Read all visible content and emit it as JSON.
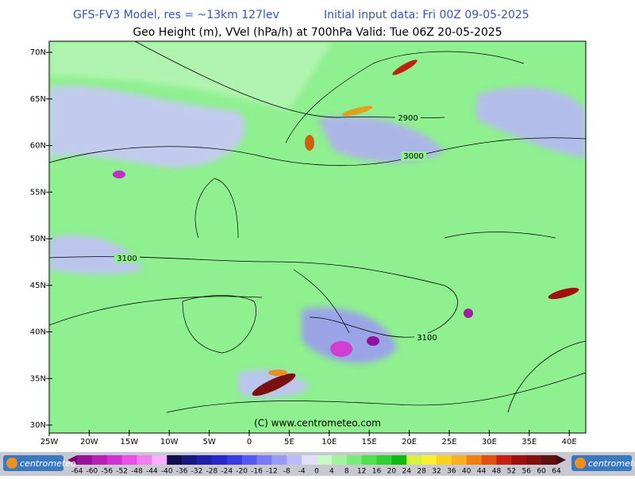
{
  "header": {
    "line1_left": "GFS-FV3 Model, res = ~13km 127lev",
    "line1_right": "Initial input data: Fri 00Z 09-05-2025",
    "line2": "Geo Height (m), VVel (hPa/h) at 700hPa  Valid: Tue 06Z 20-05-2025"
  },
  "map": {
    "lat_labels": [
      "70N",
      "65N",
      "60N",
      "55N",
      "50N",
      "45N",
      "40N",
      "35N",
      "30N"
    ],
    "lon_labels": [
      "25W",
      "20W",
      "15W",
      "10W",
      "5W",
      "0",
      "5E",
      "10E",
      "15E",
      "20E",
      "25E",
      "30E",
      "35E",
      "40E"
    ],
    "contour_labels": [
      "2900",
      "3000",
      "3100",
      "3100"
    ],
    "copyright": "(C) www.centrometeo.com"
  },
  "colorbar": {
    "labels": [
      -64,
      -60,
      -56,
      -52,
      -48,
      -44,
      -40,
      -36,
      -32,
      -28,
      -24,
      -20,
      -16,
      -12,
      -8,
      -4,
      0,
      4,
      8,
      12,
      16,
      20,
      24,
      28,
      32,
      36,
      40,
      44,
      48,
      52,
      56,
      60,
      64
    ]
  },
  "logos": {
    "left": "centrometeo",
    "right": "centrometeo"
  }
}
